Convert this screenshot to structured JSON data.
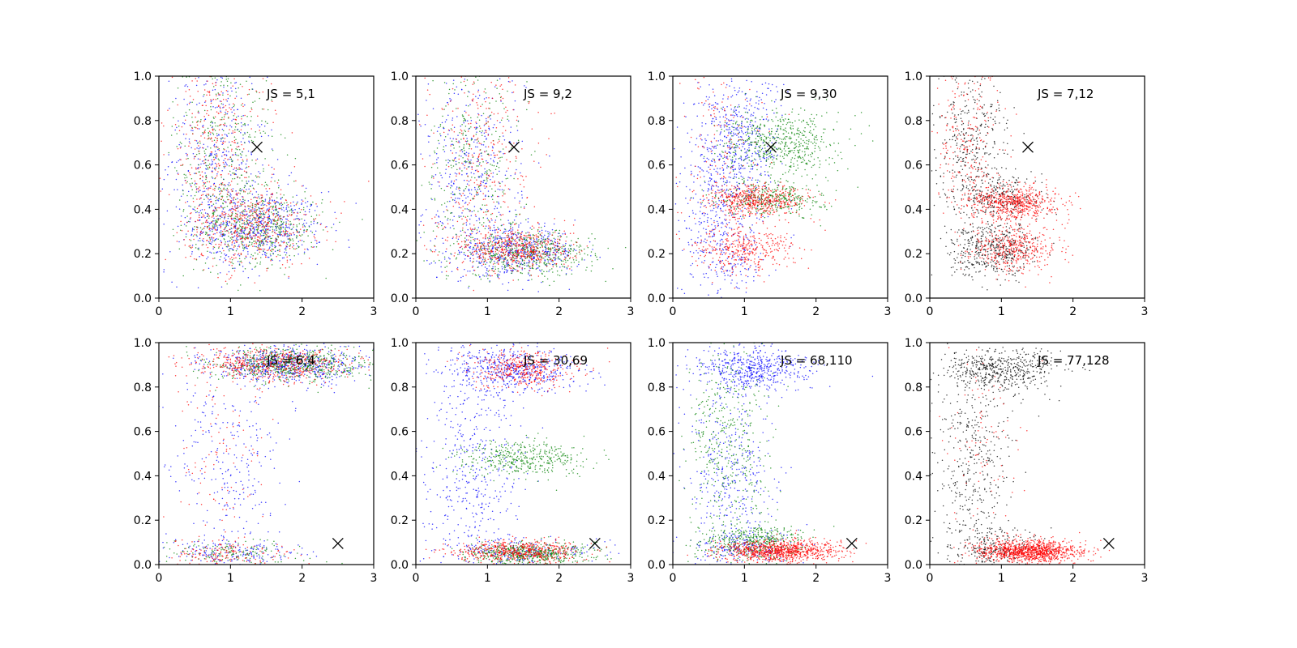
{
  "colors": {
    "blue": "#0000ff",
    "green": "#008000",
    "red": "#ff0000",
    "black": "#000000"
  },
  "chart_data": [
    {
      "type": "scatter",
      "title": "",
      "annotation": "JS = 5,1",
      "xlim": [
        0,
        3
      ],
      "ylim": [
        0,
        1
      ],
      "xticks": [
        "0",
        "1",
        "2",
        "3"
      ],
      "yticks": [
        "0.0",
        "0.2",
        "0.4",
        "0.6",
        "0.8",
        "1.0"
      ],
      "marker": {
        "symbol": "x",
        "x": 1.37,
        "y": 0.68
      },
      "series": [
        {
          "color": "blue",
          "clusters": [
            {
              "cx": 1.4,
              "cy": 0.32,
              "sx": 0.45,
              "sy": 0.08,
              "n": 550
            },
            {
              "cx": 0.8,
              "cy": 0.6,
              "sx": 0.35,
              "sy": 0.25,
              "n": 450
            }
          ]
        },
        {
          "color": "green",
          "clusters": [
            {
              "cx": 1.4,
              "cy": 0.32,
              "sx": 0.45,
              "sy": 0.08,
              "n": 500
            },
            {
              "cx": 0.9,
              "cy": 0.65,
              "sx": 0.35,
              "sy": 0.25,
              "n": 400
            }
          ]
        },
        {
          "color": "red",
          "clusters": [
            {
              "cx": 1.3,
              "cy": 0.33,
              "sx": 0.45,
              "sy": 0.09,
              "n": 500
            },
            {
              "cx": 0.8,
              "cy": 0.7,
              "sx": 0.35,
              "sy": 0.25,
              "n": 400
            }
          ]
        }
      ]
    },
    {
      "type": "scatter",
      "title": "",
      "annotation": "JS = 9,2",
      "xlim": [
        0,
        3
      ],
      "ylim": [
        0,
        1
      ],
      "xticks": [
        "0",
        "1",
        "2",
        "3"
      ],
      "yticks": [
        "0.0",
        "0.2",
        "0.4",
        "0.6",
        "0.8",
        "1.0"
      ],
      "marker": {
        "symbol": "x",
        "x": 1.37,
        "y": 0.68
      },
      "series": [
        {
          "color": "blue",
          "clusters": [
            {
              "cx": 1.4,
              "cy": 0.21,
              "sx": 0.45,
              "sy": 0.05,
              "n": 500
            },
            {
              "cx": 0.8,
              "cy": 0.55,
              "sx": 0.35,
              "sy": 0.25,
              "n": 450
            }
          ]
        },
        {
          "color": "green",
          "clusters": [
            {
              "cx": 1.6,
              "cy": 0.2,
              "sx": 0.45,
              "sy": 0.05,
              "n": 500
            },
            {
              "cx": 0.8,
              "cy": 0.6,
              "sx": 0.35,
              "sy": 0.25,
              "n": 350
            }
          ]
        },
        {
          "color": "red",
          "clusters": [
            {
              "cx": 1.4,
              "cy": 0.22,
              "sx": 0.4,
              "sy": 0.05,
              "n": 500
            },
            {
              "cx": 0.9,
              "cy": 0.65,
              "sx": 0.35,
              "sy": 0.25,
              "n": 350
            }
          ]
        }
      ]
    },
    {
      "type": "scatter",
      "title": "",
      "annotation": "JS = 9,30",
      "xlim": [
        0,
        3
      ],
      "ylim": [
        0,
        1
      ],
      "xticks": [
        "0",
        "1",
        "2",
        "3"
      ],
      "yticks": [
        "0.0",
        "0.2",
        "0.4",
        "0.6",
        "0.8",
        "1.0"
      ],
      "marker": {
        "symbol": "x",
        "x": 1.37,
        "y": 0.68
      },
      "series": [
        {
          "color": "blue",
          "clusters": [
            {
              "cx": 0.9,
              "cy": 0.7,
              "sx": 0.3,
              "sy": 0.15,
              "n": 500
            },
            {
              "cx": 0.7,
              "cy": 0.3,
              "sx": 0.3,
              "sy": 0.2,
              "n": 450
            }
          ]
        },
        {
          "color": "green",
          "clusters": [
            {
              "cx": 1.5,
              "cy": 0.7,
              "sx": 0.4,
              "sy": 0.07,
              "n": 550
            },
            {
              "cx": 1.4,
              "cy": 0.45,
              "sx": 0.35,
              "sy": 0.04,
              "n": 350
            }
          ]
        },
        {
          "color": "red",
          "clusters": [
            {
              "cx": 1.2,
              "cy": 0.44,
              "sx": 0.35,
              "sy": 0.035,
              "n": 500
            },
            {
              "cx": 1.0,
              "cy": 0.22,
              "sx": 0.35,
              "sy": 0.05,
              "n": 350
            },
            {
              "cx": 0.7,
              "cy": 0.6,
              "sx": 0.3,
              "sy": 0.3,
              "n": 200
            }
          ]
        }
      ]
    },
    {
      "type": "scatter",
      "title": "",
      "annotation": "JS = 7,12",
      "xlim": [
        0,
        3
      ],
      "ylim": [
        0,
        1
      ],
      "xticks": [
        "0",
        "1",
        "2",
        "3"
      ],
      "yticks": [
        "0.0",
        "0.2",
        "0.4",
        "0.6",
        "0.8",
        "1.0"
      ],
      "marker": {
        "symbol": "x",
        "x": 1.37,
        "y": 0.68
      },
      "series": [
        {
          "color": "black",
          "clusters": [
            {
              "cx": 0.9,
              "cy": 0.22,
              "sx": 0.3,
              "sy": 0.06,
              "n": 450
            },
            {
              "cx": 0.6,
              "cy": 0.7,
              "sx": 0.25,
              "sy": 0.2,
              "n": 400
            },
            {
              "cx": 1.0,
              "cy": 0.45,
              "sx": 0.3,
              "sy": 0.05,
              "n": 250
            }
          ]
        },
        {
          "color": "red",
          "clusters": [
            {
              "cx": 1.2,
              "cy": 0.43,
              "sx": 0.3,
              "sy": 0.04,
              "n": 600
            },
            {
              "cx": 1.2,
              "cy": 0.22,
              "sx": 0.3,
              "sy": 0.05,
              "n": 400
            },
            {
              "cx": 0.5,
              "cy": 0.7,
              "sx": 0.25,
              "sy": 0.2,
              "n": 250
            }
          ]
        }
      ]
    },
    {
      "type": "scatter",
      "title": "",
      "annotation": "JS = 6,4",
      "xlim": [
        0,
        3
      ],
      "ylim": [
        0,
        1
      ],
      "xticks": [
        "0",
        "1",
        "2",
        "3"
      ],
      "yticks": [
        "0.0",
        "0.2",
        "0.4",
        "0.6",
        "0.8",
        "1.0"
      ],
      "marker": {
        "symbol": "x",
        "x": 2.5,
        "y": 0.095
      },
      "series": [
        {
          "color": "blue",
          "clusters": [
            {
              "cx": 1.8,
              "cy": 0.9,
              "sx": 0.55,
              "sy": 0.04,
              "n": 600
            },
            {
              "cx": 1.0,
              "cy": 0.45,
              "sx": 0.4,
              "sy": 0.25,
              "n": 300
            },
            {
              "cx": 1.1,
              "cy": 0.05,
              "sx": 0.5,
              "sy": 0.03,
              "n": 150
            }
          ]
        },
        {
          "color": "green",
          "clusters": [
            {
              "cx": 1.8,
              "cy": 0.9,
              "sx": 0.55,
              "sy": 0.04,
              "n": 600
            },
            {
              "cx": 1.0,
              "cy": 0.05,
              "sx": 0.5,
              "sy": 0.03,
              "n": 150
            }
          ]
        },
        {
          "color": "red",
          "clusters": [
            {
              "cx": 1.6,
              "cy": 0.9,
              "sx": 0.55,
              "sy": 0.04,
              "n": 550
            },
            {
              "cx": 0.9,
              "cy": 0.05,
              "sx": 0.5,
              "sy": 0.03,
              "n": 150
            },
            {
              "cx": 0.9,
              "cy": 0.5,
              "sx": 0.4,
              "sy": 0.25,
              "n": 100
            }
          ]
        }
      ]
    },
    {
      "type": "scatter",
      "title": "",
      "annotation": "JS = 30,69",
      "xlim": [
        0,
        3
      ],
      "ylim": [
        0,
        1
      ],
      "xticks": [
        "0",
        "1",
        "2",
        "3"
      ],
      "yticks": [
        "0.0",
        "0.2",
        "0.4",
        "0.6",
        "0.8",
        "1.0"
      ],
      "marker": {
        "symbol": "x",
        "x": 2.5,
        "y": 0.095
      },
      "series": [
        {
          "color": "blue",
          "clusters": [
            {
              "cx": 1.4,
              "cy": 0.88,
              "sx": 0.45,
              "sy": 0.05,
              "n": 500
            },
            {
              "cx": 0.8,
              "cy": 0.45,
              "sx": 0.35,
              "sy": 0.25,
              "n": 450
            },
            {
              "cx": 1.4,
              "cy": 0.06,
              "sx": 0.5,
              "sy": 0.03,
              "n": 200
            }
          ]
        },
        {
          "color": "green",
          "clusters": [
            {
              "cx": 1.5,
              "cy": 0.48,
              "sx": 0.45,
              "sy": 0.04,
              "n": 400
            },
            {
              "cx": 1.6,
              "cy": 0.05,
              "sx": 0.45,
              "sy": 0.025,
              "n": 550
            }
          ]
        },
        {
          "color": "red",
          "clusters": [
            {
              "cx": 1.5,
              "cy": 0.88,
              "sx": 0.35,
              "sy": 0.04,
              "n": 400
            },
            {
              "cx": 1.4,
              "cy": 0.06,
              "sx": 0.45,
              "sy": 0.025,
              "n": 550
            }
          ]
        }
      ]
    },
    {
      "type": "scatter",
      "title": "",
      "annotation": "JS = 68,110",
      "xlim": [
        0,
        3
      ],
      "ylim": [
        0,
        1
      ],
      "xticks": [
        "0",
        "1",
        "2",
        "3"
      ],
      "yticks": [
        "0.0",
        "0.2",
        "0.4",
        "0.6",
        "0.8",
        "1.0"
      ],
      "marker": {
        "symbol": "x",
        "x": 2.5,
        "y": 0.095
      },
      "series": [
        {
          "color": "blue",
          "clusters": [
            {
              "cx": 1.1,
              "cy": 0.88,
              "sx": 0.4,
              "sy": 0.05,
              "n": 500
            },
            {
              "cx": 0.8,
              "cy": 0.4,
              "sx": 0.3,
              "sy": 0.25,
              "n": 400
            },
            {
              "cx": 1.0,
              "cy": 0.08,
              "sx": 0.35,
              "sy": 0.04,
              "n": 200
            }
          ]
        },
        {
          "color": "green",
          "clusters": [
            {
              "cx": 0.8,
              "cy": 0.5,
              "sx": 0.3,
              "sy": 0.25,
              "n": 450
            },
            {
              "cx": 1.1,
              "cy": 0.1,
              "sx": 0.35,
              "sy": 0.04,
              "n": 400
            }
          ]
        },
        {
          "color": "red",
          "clusters": [
            {
              "cx": 1.5,
              "cy": 0.06,
              "sx": 0.4,
              "sy": 0.025,
              "n": 900
            }
          ]
        }
      ]
    },
    {
      "type": "scatter",
      "title": "",
      "annotation": "JS = 77,128",
      "xlim": [
        0,
        3
      ],
      "ylim": [
        0,
        1
      ],
      "xticks": [
        "0",
        "1",
        "2",
        "3"
      ],
      "yticks": [
        "0.0",
        "0.2",
        "0.4",
        "0.6",
        "0.8",
        "1.0"
      ],
      "marker": {
        "symbol": "x",
        "x": 2.5,
        "y": 0.095
      },
      "series": [
        {
          "color": "black",
          "clusters": [
            {
              "cx": 1.0,
              "cy": 0.88,
              "sx": 0.4,
              "sy": 0.05,
              "n": 500
            },
            {
              "cx": 0.6,
              "cy": 0.45,
              "sx": 0.25,
              "sy": 0.25,
              "n": 450
            },
            {
              "cx": 0.9,
              "cy": 0.08,
              "sx": 0.35,
              "sy": 0.04,
              "n": 200
            }
          ]
        },
        {
          "color": "red",
          "clusters": [
            {
              "cx": 1.4,
              "cy": 0.06,
              "sx": 0.35,
              "sy": 0.025,
              "n": 1100
            },
            {
              "cx": 0.8,
              "cy": 0.5,
              "sx": 0.3,
              "sy": 0.3,
              "n": 100
            }
          ]
        }
      ]
    }
  ]
}
